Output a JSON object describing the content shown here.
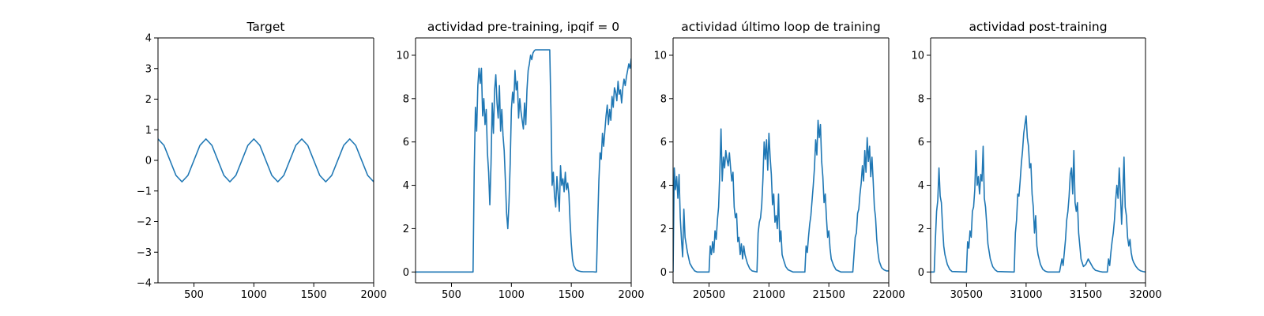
{
  "chart_data": [
    {
      "type": "line",
      "title": "Target",
      "xlabel": "",
      "ylabel": "",
      "xlim": [
        200,
        2000
      ],
      "ylim": [
        -4,
        4
      ],
      "xticks": [
        500,
        1000,
        1500,
        2000
      ],
      "yticks": [
        -4,
        -3,
        -2,
        -1,
        0,
        1,
        2,
        3,
        4
      ],
      "grid": false,
      "color": "#1f77b4",
      "series": [
        {
          "x": [
            200,
            250,
            300,
            350,
            400,
            450,
            500,
            550,
            600,
            650,
            700,
            750,
            800,
            850,
            900,
            950,
            1000,
            1050,
            1100,
            1150,
            1200,
            1250,
            1300,
            1350,
            1400,
            1450,
            1500,
            1550,
            1600,
            1650,
            1700,
            1750,
            1800,
            1850,
            1900,
            1950,
            2000
          ],
          "y": [
            0.7,
            0.49,
            0.0,
            -0.49,
            -0.7,
            -0.49,
            0.0,
            0.49,
            0.7,
            0.49,
            0.0,
            -0.49,
            -0.7,
            -0.49,
            0.0,
            0.49,
            0.7,
            0.49,
            0.0,
            -0.49,
            -0.7,
            -0.49,
            0.0,
            0.49,
            0.7,
            0.49,
            0.0,
            -0.49,
            -0.7,
            -0.49,
            0.0,
            0.49,
            0.7,
            0.49,
            0.0,
            -0.49,
            -0.7
          ]
        }
      ]
    },
    {
      "type": "line",
      "title": "actividad pre-training, ipqif = 0",
      "xlabel": "",
      "ylabel": "",
      "xlim": [
        200,
        2000
      ],
      "ylim": [
        -0.5,
        10.8
      ],
      "xticks": [
        500,
        1000,
        1500,
        2000
      ],
      "yticks": [
        0,
        2,
        4,
        6,
        8,
        10
      ],
      "grid": false,
      "color": "#1f77b4",
      "series": [
        {
          "x": [
            200,
            680,
            690,
            700,
            710,
            720,
            730,
            740,
            750,
            760,
            770,
            780,
            790,
            800,
            810,
            820,
            830,
            840,
            850,
            860,
            870,
            880,
            890,
            900,
            910,
            920,
            930,
            940,
            950,
            960,
            970,
            980,
            990,
            1000,
            1010,
            1020,
            1030,
            1040,
            1050,
            1060,
            1070,
            1080,
            1090,
            1100,
            1110,
            1120,
            1130,
            1140,
            1150,
            1160,
            1170,
            1180,
            1190,
            1200,
            1220,
            1240,
            1260,
            1280,
            1300,
            1320,
            1330,
            1340,
            1350,
            1360,
            1370,
            1380,
            1390,
            1400,
            1410,
            1420,
            1430,
            1440,
            1450,
            1460,
            1470,
            1480,
            1490,
            1500,
            1510,
            1520,
            1540,
            1560,
            1580,
            1600,
            1620,
            1640,
            1660,
            1680,
            1700,
            1710,
            1720,
            1730,
            1740,
            1750,
            1760,
            1770,
            1780,
            1790,
            1800,
            1810,
            1820,
            1830,
            1840,
            1850,
            1860,
            1870,
            1880,
            1890,
            1900,
            1910,
            1920,
            1930,
            1940,
            1950,
            1960,
            1970,
            1980,
            1990,
            2000
          ],
          "y": [
            0,
            0,
            4.8,
            7.6,
            6.5,
            8.6,
            9.4,
            8.7,
            9.4,
            7.2,
            8.0,
            6.8,
            7.5,
            5.5,
            4.6,
            3.1,
            5.0,
            7.8,
            6.4,
            8.4,
            9.1,
            7.8,
            7.1,
            8.6,
            6.5,
            7.5,
            6.3,
            5.6,
            4.2,
            2.7,
            2.0,
            3.2,
            5.0,
            7.5,
            8.3,
            7.8,
            9.3,
            8.4,
            8.8,
            7.1,
            8.0,
            7.4,
            7.0,
            6.6,
            7.8,
            6.8,
            8.4,
            9.3,
            9.6,
            10.0,
            9.8,
            10.1,
            10.2,
            10.25,
            10.25,
            10.25,
            10.25,
            10.25,
            10.25,
            10.25,
            7.5,
            4.0,
            4.6,
            3.5,
            3.0,
            4.4,
            3.6,
            2.8,
            4.9,
            4.0,
            4.3,
            3.7,
            4.6,
            3.8,
            4.1,
            3.6,
            2.3,
            1.3,
            0.6,
            0.3,
            0.1,
            0.05,
            0.02,
            0.01,
            0.01,
            0.01,
            0.01,
            0.01,
            0.0,
            0.0,
            2.2,
            4.2,
            5.5,
            5.2,
            6.4,
            5.8,
            6.5,
            7.2,
            7.7,
            6.8,
            7.5,
            7.0,
            8.1,
            7.6,
            8.5,
            8.3,
            7.9,
            8.8,
            8.2,
            8.4,
            7.8,
            8.5,
            8.9,
            8.6,
            9.0,
            9.3,
            9.6,
            9.4,
            9.85
          ]
        }
      ]
    },
    {
      "type": "line",
      "title": "actividad último loop de training",
      "xlabel": "",
      "ylabel": "",
      "xlim": [
        20200,
        22000
      ],
      "ylim": [
        -0.5,
        10.8
      ],
      "xticks": [
        20500,
        21000,
        21500,
        22000
      ],
      "yticks": [
        0,
        2,
        4,
        6,
        8,
        10
      ],
      "grid": false,
      "color": "#1f77b4",
      "series": [
        {
          "x": [
            20200,
            20210,
            20220,
            20230,
            20240,
            20250,
            20260,
            20270,
            20280,
            20290,
            20300,
            20320,
            20340,
            20360,
            20380,
            20400,
            20500,
            20510,
            20520,
            20530,
            20540,
            20550,
            20560,
            20570,
            20580,
            20590,
            20600,
            20610,
            20620,
            20630,
            20640,
            20650,
            20660,
            20670,
            20680,
            20690,
            20700,
            20710,
            20720,
            20730,
            20740,
            20750,
            20760,
            20770,
            20780,
            20790,
            20800,
            20820,
            20840,
            20860,
            20900,
            20910,
            20920,
            20930,
            20940,
            20950,
            20960,
            20970,
            20980,
            20990,
            21000,
            21010,
            21020,
            21030,
            21040,
            21050,
            21060,
            21070,
            21080,
            21090,
            21100,
            21110,
            21120,
            21140,
            21160,
            21180,
            21200,
            21300,
            21310,
            21320,
            21330,
            21340,
            21350,
            21360,
            21370,
            21380,
            21390,
            21400,
            21410,
            21420,
            21430,
            21440,
            21450,
            21460,
            21470,
            21480,
            21490,
            21500,
            21510,
            21520,
            21540,
            21560,
            21580,
            21600,
            21700,
            21710,
            21720,
            21730,
            21740,
            21750,
            21760,
            21770,
            21780,
            21790,
            21800,
            21810,
            21820,
            21830,
            21840,
            21850,
            21860,
            21870,
            21880,
            21890,
            21900,
            21910,
            21920,
            21940,
            21960,
            21980,
            22000
          ],
          "y": [
            0.0,
            4.8,
            3.8,
            4.4,
            3.4,
            4.5,
            2.5,
            1.5,
            0.7,
            2.9,
            1.6,
            0.9,
            0.4,
            0.2,
            0.05,
            0.0,
            0.0,
            1.2,
            0.8,
            1.4,
            0.9,
            1.9,
            1.5,
            2.4,
            3.0,
            4.6,
            6.6,
            4.2,
            5.3,
            4.8,
            5.6,
            5.2,
            4.9,
            5.5,
            4.8,
            4.2,
            4.6,
            3.0,
            2.5,
            2.7,
            1.4,
            1.6,
            0.8,
            1.3,
            0.6,
            1.2,
            0.8,
            0.4,
            0.15,
            0.05,
            0.0,
            1.8,
            2.3,
            2.5,
            3.1,
            4.3,
            6.0,
            5.2,
            6.1,
            4.7,
            6.4,
            5.3,
            4.5,
            3.1,
            3.6,
            2.3,
            2.6,
            2.0,
            3.6,
            1.4,
            1.9,
            0.8,
            0.6,
            0.25,
            0.1,
            0.05,
            0.0,
            0.0,
            1.2,
            0.9,
            1.6,
            2.2,
            2.6,
            3.3,
            4.0,
            4.8,
            6.1,
            5.4,
            7.0,
            6.2,
            6.8,
            5.1,
            4.4,
            3.2,
            3.6,
            2.5,
            1.6,
            1.9,
            1.1,
            0.6,
            0.3,
            0.1,
            0.05,
            0.0,
            0.0,
            0.8,
            1.6,
            1.8,
            2.7,
            2.9,
            3.6,
            4.1,
            4.9,
            4.2,
            5.6,
            4.6,
            6.2,
            5.1,
            5.8,
            4.4,
            5.3,
            4.2,
            3.0,
            2.5,
            1.5,
            0.9,
            0.5,
            0.2,
            0.1,
            0.05,
            0.05
          ]
        }
      ]
    },
    {
      "type": "line",
      "title": "actividad post-training",
      "xlabel": "",
      "ylabel": "",
      "xlim": [
        30200,
        32000
      ],
      "ylim": [
        -0.5,
        10.8
      ],
      "xticks": [
        30500,
        31000,
        31500,
        32000
      ],
      "yticks": [
        0,
        2,
        4,
        6,
        8,
        10
      ],
      "grid": false,
      "color": "#1f77b4",
      "series": [
        {
          "x": [
            30200,
            30230,
            30240,
            30250,
            30260,
            30270,
            30280,
            30290,
            30300,
            30310,
            30320,
            30340,
            30360,
            30380,
            30500,
            30510,
            30520,
            30530,
            30540,
            30550,
            30560,
            30570,
            30580,
            30590,
            30600,
            30610,
            30620,
            30630,
            30640,
            30650,
            30660,
            30670,
            30680,
            30700,
            30720,
            30740,
            30760,
            30900,
            30910,
            30920,
            30930,
            30940,
            30950,
            30960,
            30970,
            30980,
            30990,
            31000,
            31010,
            31020,
            31030,
            31040,
            31050,
            31060,
            31070,
            31080,
            31090,
            31100,
            31120,
            31140,
            31160,
            31180,
            31280,
            31300,
            31310,
            31320,
            31330,
            31340,
            31350,
            31360,
            31370,
            31380,
            31390,
            31400,
            31410,
            31420,
            31430,
            31440,
            31450,
            31460,
            31480,
            31500,
            31520,
            31540,
            31560,
            31580,
            31620,
            31640,
            31660,
            31680,
            31690,
            31700,
            31710,
            31720,
            31730,
            31740,
            31750,
            31760,
            31770,
            31780,
            31790,
            31800,
            31810,
            31820,
            31830,
            31840,
            31850,
            31860,
            31870,
            31880,
            31890,
            31900,
            31920,
            31940,
            31960,
            31980,
            32000
          ],
          "y": [
            0.0,
            0.0,
            1.5,
            2.8,
            3.3,
            4.8,
            3.5,
            3.2,
            2.1,
            1.2,
            0.8,
            0.35,
            0.12,
            0.02,
            0.0,
            1.4,
            1.1,
            1.9,
            1.6,
            2.8,
            3.0,
            3.8,
            5.6,
            4.0,
            4.4,
            3.6,
            4.5,
            4.2,
            5.8,
            3.4,
            3.0,
            2.2,
            1.3,
            0.6,
            0.25,
            0.1,
            0.02,
            0.0,
            1.8,
            2.4,
            3.6,
            3.5,
            4.2,
            5.0,
            5.6,
            6.4,
            6.8,
            7.2,
            6.2,
            5.8,
            4.8,
            5.0,
            3.6,
            3.0,
            1.8,
            2.6,
            1.2,
            0.8,
            0.35,
            0.12,
            0.04,
            0.0,
            0.0,
            0.6,
            0.3,
            0.9,
            1.5,
            2.4,
            2.8,
            3.5,
            4.5,
            4.8,
            3.6,
            5.6,
            3.2,
            2.8,
            3.2,
            1.8,
            1.2,
            0.6,
            0.25,
            0.35,
            0.6,
            0.4,
            0.2,
            0.08,
            0.02,
            0.0,
            0.0,
            0.0,
            0.6,
            0.3,
            0.9,
            1.4,
            1.8,
            2.4,
            3.3,
            4.0,
            3.4,
            4.8,
            3.6,
            2.2,
            3.6,
            5.3,
            3.0,
            2.6,
            1.6,
            1.2,
            1.5,
            0.9,
            0.6,
            0.45,
            0.25,
            0.12,
            0.05,
            0.02,
            0.0
          ]
        }
      ]
    }
  ]
}
